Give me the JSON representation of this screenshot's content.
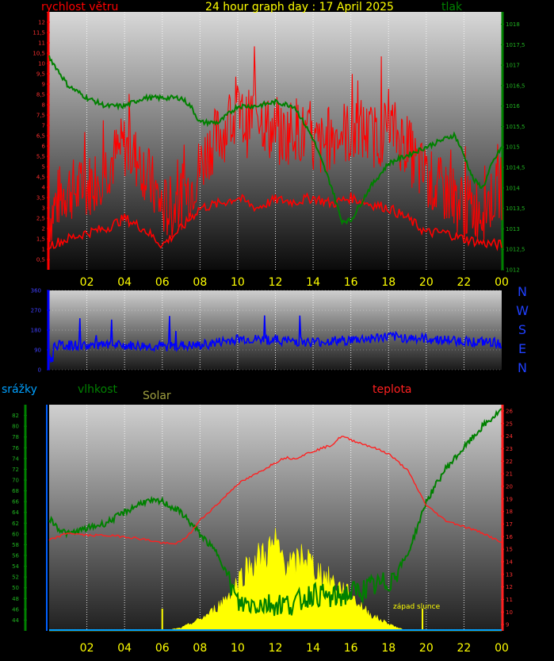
{
  "header": {
    "title": "24 hour graph day : 17 April 2025",
    "wind_label": "rychlost větru",
    "pressure_label": "tlak"
  },
  "lower_labels": {
    "rain": "srážky",
    "humidity": "vlhkost",
    "solar": "Solar",
    "temperature": "teplota",
    "sunset": "západ slunce"
  },
  "compass": [
    "N",
    "W",
    "S",
    "E",
    "N"
  ],
  "colors": {
    "wind": "#ff0000",
    "pressure": "#008000",
    "direction": "#0000ff",
    "temperature": "#ff2020",
    "humidity": "#008000",
    "solar": "#ffff00",
    "rain": "#00a0ff",
    "x_ticks": "#ffff00"
  },
  "chart_data": [
    {
      "type": "line",
      "title": "24 hour graph day : 17 April 2025",
      "x_ticks": [
        "02",
        "04",
        "06",
        "08",
        "10",
        "12",
        "14",
        "16",
        "18",
        "20",
        "22",
        "00"
      ],
      "y_left_label": "rychlost větru",
      "y_left_ticks": [
        "0,5",
        "1",
        "1,5",
        "2",
        "2,5",
        "3",
        "3,5",
        "4",
        "4,5",
        "5",
        "5,5",
        "6",
        "6,5",
        "7",
        "7,5",
        "8",
        "8,5",
        "9",
        "9,5",
        "10",
        "10,5",
        "11",
        "11,5",
        "12"
      ],
      "y_left_range": [
        0,
        12.5
      ],
      "y_right_label": "tlak",
      "y_right_ticks": [
        "1012",
        "1012,5",
        "1013",
        "1013,5",
        "1014",
        "1014,5",
        "1015",
        "1015,5",
        "1016",
        "1016,5",
        "1017",
        "1017,5",
        "1018"
      ],
      "y_right_range": [
        1012,
        1018.3
      ],
      "series": [
        {
          "name": "rychlost větru",
          "axis": "left",
          "style": "gust",
          "x": [
            0,
            0.5,
            1,
            1.5,
            2,
            2.5,
            3,
            3.5,
            4,
            4.5,
            5,
            5.5,
            6,
            6.5,
            7,
            7.5,
            8,
            8.5,
            9,
            9.5,
            10,
            10.5,
            11,
            11.5,
            12,
            12.5,
            13,
            13.5,
            14,
            14.5,
            15,
            15.5,
            16,
            16.5,
            17,
            17.5,
            18,
            18.5,
            19,
            19.5,
            20,
            20.5,
            21,
            21.5,
            22,
            22.5,
            23,
            23.5,
            24
          ],
          "values": [
            2.5,
            3.5,
            4,
            3.8,
            4,
            4.5,
            5,
            5.5,
            6,
            5.5,
            5,
            4,
            3,
            3,
            3.5,
            4,
            5,
            6,
            6.5,
            7,
            7.5,
            7,
            8,
            7,
            6.5,
            6.5,
            7,
            6.5,
            6,
            6,
            6.5,
            6.8,
            6.5,
            6.8,
            6.5,
            6.5,
            7,
            6.5,
            6,
            5,
            4.5,
            4,
            3.8,
            3.5,
            3,
            3,
            3,
            3.5,
            4
          ]
        },
        {
          "name": "rychlost větru (průměr)",
          "axis": "left",
          "style": "avg",
          "x": [
            0,
            1,
            2,
            3,
            4,
            5,
            6,
            7,
            8,
            9,
            10,
            11,
            12,
            13,
            14,
            15,
            16,
            17,
            18,
            19,
            20,
            21,
            22,
            23,
            24
          ],
          "values": [
            1.2,
            1.5,
            1.8,
            2,
            2.5,
            2,
            1.2,
            2,
            3,
            3.2,
            3.5,
            3,
            3.4,
            3.3,
            3.5,
            3.2,
            3.5,
            3.2,
            3,
            2.5,
            1.8,
            1.8,
            1.5,
            1.3,
            1.2
          ]
        },
        {
          "name": "tlak",
          "axis": "right",
          "x": [
            0,
            1,
            2,
            3,
            4,
            5,
            6,
            7,
            7.5,
            8,
            9,
            10,
            11,
            12,
            13,
            14,
            15,
            15.5,
            16,
            17,
            18,
            19,
            20,
            21,
            21.5,
            22,
            22.5,
            23,
            23.5,
            24
          ],
          "values": [
            1017.2,
            1016.5,
            1016.2,
            1016,
            1016,
            1016.2,
            1016.2,
            1016.2,
            1016,
            1015.6,
            1015.6,
            1016,
            1016,
            1016.1,
            1016,
            1015.2,
            1014,
            1013.2,
            1013.2,
            1014,
            1014.6,
            1014.8,
            1015,
            1015.2,
            1015.3,
            1014.8,
            1014.2,
            1014,
            1014.6,
            1015
          ]
        }
      ]
    },
    {
      "type": "scatter",
      "title": "",
      "y_ticks": [
        "0",
        "90",
        "180",
        "270",
        "360"
      ],
      "y_range": [
        0,
        360
      ],
      "x_range": [
        0,
        24
      ],
      "series": [
        {
          "name": "",
          "x": [
            0,
            2,
            4,
            6,
            8,
            10,
            12,
            14,
            16,
            18,
            20,
            22,
            24
          ],
          "values": [
            110,
            110,
            110,
            105,
            110,
            140,
            135,
            125,
            135,
            150,
            140,
            130,
            120
          ]
        }
      ]
    },
    {
      "type": "line",
      "x_ticks": [
        "02",
        "04",
        "06",
        "08",
        "10",
        "12",
        "14",
        "16",
        "18",
        "20",
        "22",
        "00"
      ],
      "y_left_label": "vlhkost",
      "y_left_ticks": [
        "44",
        "46",
        "48",
        "50",
        "52",
        "54",
        "56",
        "58",
        "60",
        "62",
        "64",
        "66",
        "68",
        "70",
        "72",
        "74",
        "76",
        "78",
        "80",
        "82"
      ],
      "y_left_range": [
        42,
        84
      ],
      "y_right_label": "teplota",
      "y_right_ticks": [
        "9",
        "10",
        "11",
        "12",
        "13",
        "14",
        "15",
        "16",
        "17",
        "18",
        "19",
        "20",
        "21",
        "22",
        "23",
        "24",
        "25",
        "26"
      ],
      "y_right_range": [
        8.5,
        26.5
      ],
      "series": [
        {
          "name": "vlhkost",
          "axis": "left",
          "x": [
            0,
            0.5,
            1,
            2,
            3,
            4,
            5,
            6,
            6.5,
            7,
            7.5,
            8,
            8.5,
            9,
            9.5,
            10,
            11,
            12,
            13,
            14,
            15,
            16,
            17,
            18,
            19,
            20,
            21,
            22,
            23,
            24
          ],
          "values": [
            63,
            61,
            60,
            61,
            62,
            64,
            66,
            66,
            65,
            64,
            62,
            60,
            58,
            56,
            52,
            47,
            47,
            47,
            47,
            49,
            48,
            49,
            50,
            51,
            56,
            66,
            72,
            76,
            80,
            83
          ]
        },
        {
          "name": "teplota",
          "axis": "right",
          "x": [
            0,
            0.5,
            1,
            2,
            3,
            4,
            5,
            6,
            6.5,
            7,
            7.5,
            8,
            9,
            10,
            11,
            12,
            12.5,
            13,
            14,
            15,
            15.5,
            16,
            17,
            18,
            19,
            20,
            21,
            22,
            23,
            24
          ],
          "values": [
            15.7,
            16,
            16.3,
            16.1,
            16.1,
            16,
            15.8,
            15.5,
            15.4,
            15.6,
            16.3,
            17.3,
            18.7,
            20.2,
            21,
            21.9,
            22.3,
            22.2,
            22.8,
            23.3,
            24,
            23.7,
            23.2,
            22.6,
            21.3,
            18.5,
            17.3,
            16.8,
            16.3,
            15.5
          ]
        },
        {
          "name": "Solar",
          "axis": "hidden",
          "style": "area",
          "x": [
            0,
            6,
            7,
            7.5,
            8,
            8.5,
            9,
            9.5,
            10,
            10.5,
            11,
            11.5,
            12,
            12.5,
            13,
            13.5,
            14,
            14.5,
            15,
            15.5,
            16,
            16.5,
            17,
            17.5,
            18,
            18.5,
            19,
            24
          ],
          "values": [
            0,
            0,
            2,
            5,
            8,
            12,
            18,
            25,
            35,
            45,
            50,
            55,
            60,
            50,
            45,
            55,
            45,
            40,
            35,
            30,
            25,
            18,
            12,
            8,
            5,
            2,
            0,
            0
          ]
        },
        {
          "name": "srážky",
          "axis": "hidden",
          "style": "baseline",
          "x": [
            0,
            24
          ],
          "values": [
            0,
            0
          ]
        }
      ]
    }
  ]
}
